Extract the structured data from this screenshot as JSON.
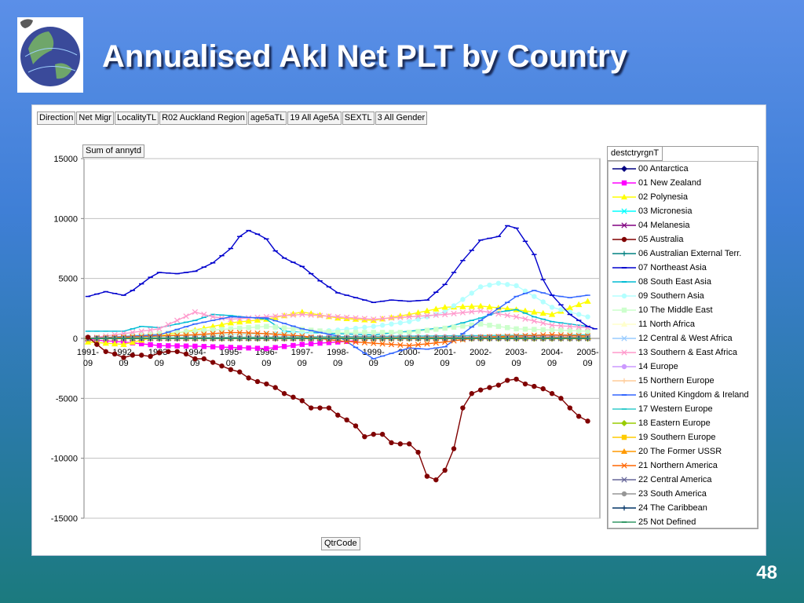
{
  "slide": {
    "title": "Annualised Akl Net PLT by Country",
    "page_number": "48",
    "logo_icon": "globe-with-map-logo"
  },
  "filters": [
    "Direction",
    "Net Migr",
    "LocalityTL",
    "R02 Auckland Region",
    "age5aTL",
    "19 All Age5A",
    "SEXTL",
    "3 All Gender"
  ],
  "legend_title": "destctryrgnT",
  "y_field_label": "Sum of annytd",
  "x_field_label": "QtrCode",
  "chart_data": {
    "type": "line",
    "ylim": [
      -15000,
      15000
    ],
    "yticks": [
      15000,
      10000,
      5000,
      0,
      -5000,
      -10000,
      -15000
    ],
    "categories": [
      "1991-09",
      "1992-09",
      "1993-09",
      "1994-09",
      "1995-09",
      "1996-09",
      "1997-09",
      "1998-09",
      "1999-09",
      "2000-09",
      "2001-09",
      "2002-09",
      "2003-09",
      "2004-09",
      "2005-09"
    ],
    "grid": "horizontal",
    "legend_position": "right",
    "series": [
      {
        "name": "00 Antarctica",
        "color": "#000080",
        "marker": "diamond",
        "points": [
          [
            0,
            0
          ],
          [
            14,
            0
          ]
        ]
      },
      {
        "name": "01 New Zealand",
        "color": "#ff00ff",
        "marker": "square",
        "points": [
          [
            0,
            -100
          ],
          [
            1,
            -300
          ],
          [
            2,
            -600
          ],
          [
            3,
            -650
          ],
          [
            4,
            -750
          ],
          [
            5,
            -850
          ],
          [
            6,
            -500
          ],
          [
            7,
            -300
          ],
          [
            7.5,
            -200
          ]
        ]
      },
      {
        "name": "02 Polynesia",
        "color": "#ffff00",
        "marker": "triangle",
        "points": [
          [
            0,
            -300
          ],
          [
            1,
            -500
          ],
          [
            2,
            200
          ],
          [
            3,
            700
          ],
          [
            4,
            1300
          ],
          [
            5,
            1600
          ],
          [
            6,
            2200
          ],
          [
            7,
            1700
          ],
          [
            8,
            1500
          ],
          [
            9,
            2000
          ],
          [
            10,
            2600
          ],
          [
            11,
            2700
          ],
          [
            12,
            2400
          ],
          [
            13,
            2000
          ],
          [
            14,
            3100
          ]
        ]
      },
      {
        "name": "03 Micronesia",
        "color": "#00ffff",
        "marker": "x",
        "points": [
          [
            0,
            0
          ],
          [
            14,
            0
          ]
        ]
      },
      {
        "name": "04 Melanesia",
        "color": "#800080",
        "marker": "x",
        "points": [
          [
            0,
            0
          ],
          [
            14,
            50
          ]
        ]
      },
      {
        "name": "05 Australia",
        "color": "#800000",
        "marker": "circle",
        "points": [
          [
            0,
            100
          ],
          [
            0.25,
            -500
          ],
          [
            0.5,
            -1100
          ],
          [
            0.75,
            -1300
          ],
          [
            1,
            -1600
          ],
          [
            1.25,
            -1400
          ],
          [
            1.5,
            -1400
          ],
          [
            1.75,
            -1500
          ],
          [
            2,
            -1200
          ],
          [
            2.25,
            -1100
          ],
          [
            2.5,
            -1100
          ],
          [
            2.75,
            -1300
          ],
          [
            3,
            -1700
          ],
          [
            3.25,
            -1700
          ],
          [
            3.5,
            -2000
          ],
          [
            3.75,
            -2300
          ],
          [
            4,
            -2600
          ],
          [
            4.25,
            -2800
          ],
          [
            4.5,
            -3300
          ],
          [
            4.75,
            -3600
          ],
          [
            5,
            -3800
          ],
          [
            5.25,
            -4100
          ],
          [
            5.5,
            -4600
          ],
          [
            5.75,
            -4900
          ],
          [
            6,
            -5200
          ],
          [
            6.25,
            -5800
          ],
          [
            6.5,
            -5800
          ],
          [
            6.75,
            -5800
          ],
          [
            7,
            -6400
          ],
          [
            7.25,
            -6800
          ],
          [
            7.5,
            -7300
          ],
          [
            7.75,
            -8200
          ],
          [
            8,
            -8000
          ],
          [
            8.25,
            -8000
          ],
          [
            8.5,
            -8700
          ],
          [
            8.75,
            -8800
          ],
          [
            9,
            -8800
          ],
          [
            9.25,
            -9500
          ],
          [
            9.5,
            -11500
          ],
          [
            9.75,
            -11800
          ],
          [
            10,
            -11000
          ],
          [
            10.25,
            -9200
          ],
          [
            10.5,
            -5800
          ],
          [
            10.75,
            -4600
          ],
          [
            11,
            -4300
          ],
          [
            11.25,
            -4100
          ],
          [
            11.5,
            -3900
          ],
          [
            11.75,
            -3500
          ],
          [
            12,
            -3400
          ],
          [
            12.25,
            -3800
          ],
          [
            12.5,
            -4000
          ],
          [
            12.75,
            -4200
          ],
          [
            13,
            -4600
          ],
          [
            13.25,
            -5000
          ],
          [
            13.5,
            -5800
          ],
          [
            13.75,
            -6500
          ],
          [
            14,
            -6900
          ]
        ]
      },
      {
        "name": "06 Australian External Terr.",
        "color": "#008080",
        "marker": "plus",
        "points": [
          [
            0,
            0
          ],
          [
            14,
            0
          ]
        ]
      },
      {
        "name": "07 Northeast Asia",
        "color": "#0000cd",
        "marker": "dash",
        "points": [
          [
            0,
            3500
          ],
          [
            0.5,
            3900
          ],
          [
            1,
            3600
          ],
          [
            1.25,
            4000
          ],
          [
            1.75,
            5100
          ],
          [
            2,
            5500
          ],
          [
            2.5,
            5400
          ],
          [
            3,
            5600
          ],
          [
            3.5,
            6300
          ],
          [
            4,
            7500
          ],
          [
            4.25,
            8500
          ],
          [
            4.5,
            9000
          ],
          [
            4.75,
            8700
          ],
          [
            5,
            8300
          ],
          [
            5.25,
            7300
          ],
          [
            5.5,
            6700
          ],
          [
            6,
            6000
          ],
          [
            6.5,
            4800
          ],
          [
            7,
            3800
          ],
          [
            7.5,
            3400
          ],
          [
            8,
            3000
          ],
          [
            8.5,
            3200
          ],
          [
            9,
            3100
          ],
          [
            9.5,
            3200
          ],
          [
            10,
            4500
          ],
          [
            10.5,
            6500
          ],
          [
            11,
            8200
          ],
          [
            11.5,
            8500
          ],
          [
            11.75,
            9400
          ],
          [
            12,
            9200
          ],
          [
            12.5,
            7000
          ],
          [
            12.75,
            4900
          ],
          [
            13,
            3600
          ],
          [
            13.5,
            2000
          ],
          [
            14,
            1000
          ],
          [
            14.2,
            800
          ]
        ]
      },
      {
        "name": "08 South East Asia",
        "color": "#00bcd4",
        "marker": "dash",
        "points": [
          [
            0,
            600
          ],
          [
            1,
            600
          ],
          [
            1.5,
            1000
          ],
          [
            2,
            900
          ],
          [
            3,
            1500
          ],
          [
            3.5,
            2000
          ],
          [
            4,
            1900
          ],
          [
            5,
            1600
          ],
          [
            5.5,
            600
          ],
          [
            6,
            500
          ],
          [
            7,
            400
          ],
          [
            8,
            300
          ],
          [
            9,
            600
          ],
          [
            10,
            900
          ],
          [
            11,
            1700
          ],
          [
            11.5,
            2200
          ],
          [
            12,
            2400
          ],
          [
            12.5,
            1800
          ],
          [
            13,
            1400
          ],
          [
            14,
            1000
          ]
        ]
      },
      {
        "name": "09 Southern Asia",
        "color": "#b3ffff",
        "marker": "circle",
        "points": [
          [
            0,
            0
          ],
          [
            5,
            400
          ],
          [
            6,
            500
          ],
          [
            7,
            700
          ],
          [
            8,
            1000
          ],
          [
            9,
            1400
          ],
          [
            10,
            2200
          ],
          [
            11,
            4300
          ],
          [
            11.5,
            4600
          ],
          [
            12,
            4400
          ],
          [
            13,
            2600
          ],
          [
            14,
            1800
          ]
        ]
      },
      {
        "name": "10 The Middle East",
        "color": "#ccffcc",
        "marker": "square",
        "points": [
          [
            0,
            0
          ],
          [
            4,
            800
          ],
          [
            5,
            1000
          ],
          [
            7,
            500
          ],
          [
            9,
            500
          ],
          [
            11,
            1200
          ],
          [
            12,
            800
          ],
          [
            14,
            600
          ]
        ]
      },
      {
        "name": "11 North Africa",
        "color": "#ffffcc",
        "marker": "triangle",
        "points": [
          [
            0,
            0
          ],
          [
            14,
            100
          ]
        ]
      },
      {
        "name": "12 Central & West Africa",
        "color": "#99ccff",
        "marker": "x",
        "points": [
          [
            0,
            0
          ],
          [
            14,
            0
          ]
        ]
      },
      {
        "name": "13 Southern & East Africa",
        "color": "#ff99cc",
        "marker": "x",
        "points": [
          [
            0,
            0
          ],
          [
            2,
            800
          ],
          [
            2.5,
            1500
          ],
          [
            3,
            2200
          ],
          [
            3.5,
            1800
          ],
          [
            4,
            1600
          ],
          [
            5,
            1800
          ],
          [
            6,
            2000
          ],
          [
            7,
            1800
          ],
          [
            8,
            1600
          ],
          [
            9,
            1800
          ],
          [
            10,
            2000
          ],
          [
            11,
            2300
          ],
          [
            12,
            1800
          ],
          [
            13,
            1100
          ],
          [
            14,
            900
          ]
        ]
      },
      {
        "name": "14 Europe",
        "color": "#cc99ff",
        "marker": "circle",
        "points": [
          [
            0,
            0
          ],
          [
            14,
            200
          ]
        ]
      },
      {
        "name": "15 Northern Europe",
        "color": "#ffcc99",
        "marker": "plus",
        "points": [
          [
            0,
            0
          ],
          [
            14,
            100
          ]
        ]
      },
      {
        "name": "16 United Kingdom & Ireland",
        "color": "#3366ff",
        "marker": "dash",
        "points": [
          [
            0,
            0
          ],
          [
            2,
            300
          ],
          [
            3,
            1200
          ],
          [
            4,
            1800
          ],
          [
            5,
            1700
          ],
          [
            6,
            800
          ],
          [
            7,
            200
          ],
          [
            8,
            -1700
          ],
          [
            9,
            -800
          ],
          [
            9.5,
            -900
          ],
          [
            10,
            -700
          ],
          [
            11,
            1500
          ],
          [
            12,
            3500
          ],
          [
            12.5,
            4000
          ],
          [
            13,
            3600
          ],
          [
            13.5,
            3400
          ],
          [
            14,
            3600
          ]
        ]
      },
      {
        "name": "17 Western Europe",
        "color": "#33cccc",
        "marker": "dash",
        "points": [
          [
            0,
            0
          ],
          [
            14,
            300
          ]
        ]
      },
      {
        "name": "18 Eastern Europe",
        "color": "#99cc00",
        "marker": "diamond",
        "points": [
          [
            0,
            0
          ],
          [
            14,
            0
          ]
        ]
      },
      {
        "name": "19 Southern Europe",
        "color": "#ffcc00",
        "marker": "square",
        "points": [
          [
            0,
            0
          ],
          [
            14,
            0
          ]
        ]
      },
      {
        "name": "20 The Former USSR",
        "color": "#ff9900",
        "marker": "triangle",
        "points": [
          [
            0,
            0
          ],
          [
            14,
            100
          ]
        ]
      },
      {
        "name": "21 Northern America",
        "color": "#ff6600",
        "marker": "x",
        "points": [
          [
            0,
            0
          ],
          [
            3,
            300
          ],
          [
            4,
            500
          ],
          [
            5,
            400
          ],
          [
            6,
            200
          ],
          [
            7,
            -200
          ],
          [
            8,
            -400
          ],
          [
            9,
            -600
          ],
          [
            10,
            -300
          ],
          [
            11,
            100
          ],
          [
            12,
            200
          ],
          [
            13,
            300
          ],
          [
            14,
            200
          ]
        ]
      },
      {
        "name": "22 Central America",
        "color": "#666699",
        "marker": "x",
        "points": [
          [
            0,
            0
          ],
          [
            14,
            0
          ]
        ]
      },
      {
        "name": "23 South America",
        "color": "#969696",
        "marker": "circle",
        "points": [
          [
            0,
            0
          ],
          [
            14,
            50
          ]
        ]
      },
      {
        "name": "24 The Caribbean",
        "color": "#003366",
        "marker": "plus",
        "points": [
          [
            0,
            0
          ],
          [
            14,
            0
          ]
        ]
      },
      {
        "name": "25 Not Defined",
        "color": "#339966",
        "marker": "dash",
        "points": [
          [
            0,
            0
          ],
          [
            14,
            0
          ]
        ]
      }
    ]
  }
}
